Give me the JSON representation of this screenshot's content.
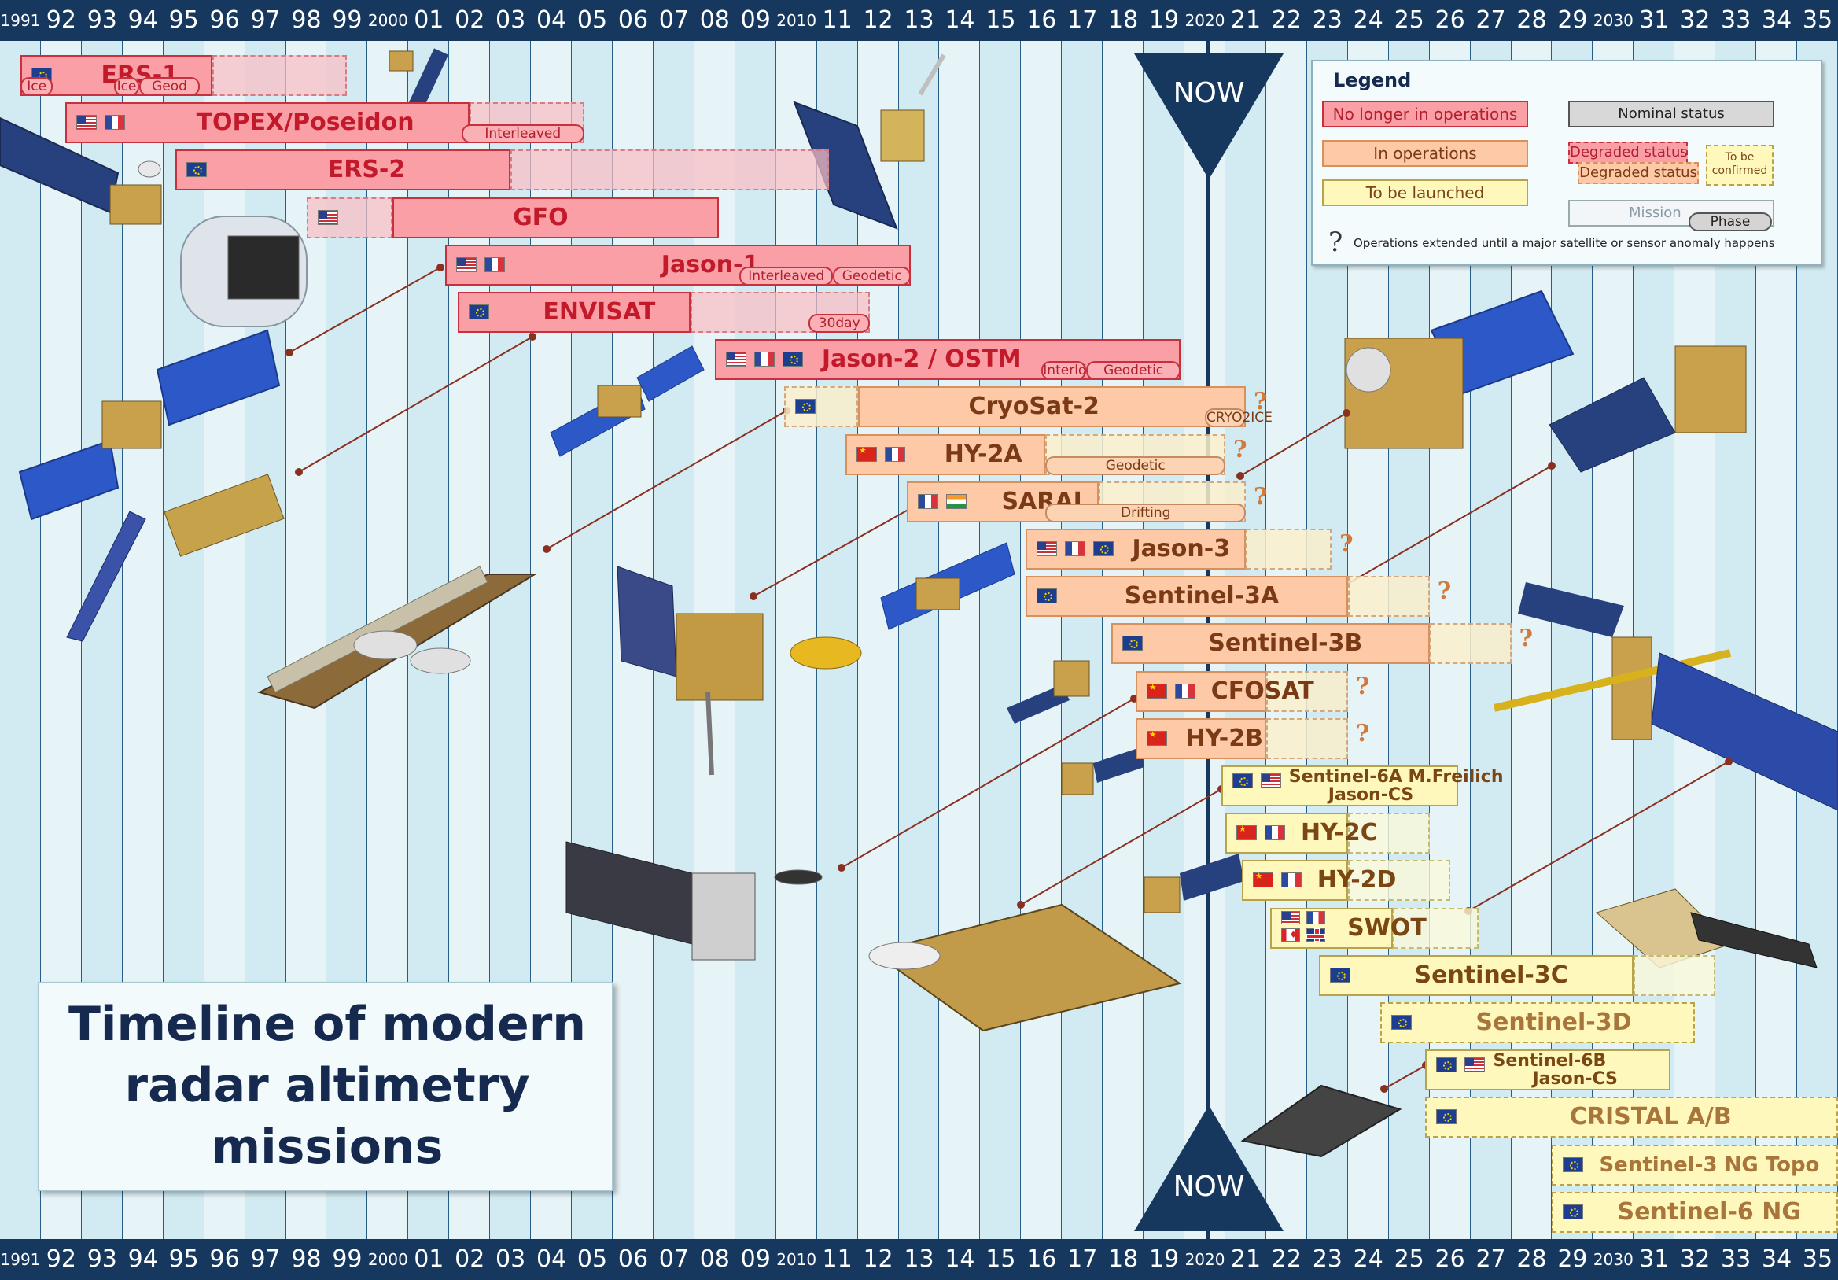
{
  "diagram": {
    "title_lines": [
      "Timeline of modern",
      "radar altimetry",
      "missions"
    ],
    "now_label": "NOW",
    "timeline_start_year": 1991,
    "timeline_end_year": 2036,
    "now_year": 2020.5,
    "year_ticks": [
      "1991",
      "92",
      "93",
      "94",
      "95",
      "96",
      "97",
      "98",
      "99",
      "2000",
      "01",
      "02",
      "03",
      "04",
      "05",
      "06",
      "07",
      "08",
      "09",
      "2010",
      "11",
      "12",
      "13",
      "14",
      "15",
      "16",
      "17",
      "18",
      "19",
      "2020",
      "21",
      "22",
      "23",
      "24",
      "25",
      "26",
      "27",
      "28",
      "29",
      "2030",
      "31",
      "32",
      "33",
      "34",
      "35"
    ],
    "colors": {
      "no_longer": "#fb9fa7",
      "in_operations": "#fdc9a7",
      "to_be_launched": "#fff8bd",
      "axis": "#17385e"
    },
    "missions": [
      {
        "name": "ERS-1",
        "status": "no_longer",
        "start": 1991.5,
        "end": 1996.2,
        "ext_end": 1999.5,
        "flags": [
          "eu"
        ],
        "phases": [
          {
            "label": "Ice",
            "start": 1991.5,
            "end": 1992.3
          },
          {
            "label": "Ice",
            "start": 1993.8,
            "end": 1994.4
          },
          {
            "label": "Geod",
            "start": 1994.4,
            "end": 1995.9
          }
        ]
      },
      {
        "name": "TOPEX/Poseidon",
        "status": "no_longer",
        "start": 1992.6,
        "end": 2002.5,
        "ext_end": 2005.3,
        "flags": [
          "us",
          "fr"
        ],
        "phases": [
          {
            "label": "Interleaved",
            "start": 2002.3,
            "end": 2005.3
          }
        ]
      },
      {
        "name": "ERS-2",
        "status": "no_longer",
        "start": 1995.3,
        "end": 2003.5,
        "ext_end": 2011.3,
        "flags": [
          "eu"
        ],
        "phases": []
      },
      {
        "name": "GFO",
        "status": "no_longer",
        "start": 1998.5,
        "end": 2008.6,
        "ext_end": 2008.6,
        "solid_start": 2000.6,
        "flags": [
          "us"
        ],
        "phases": []
      },
      {
        "name": "Jason-1",
        "status": "no_longer",
        "start": 2001.9,
        "end": 2013.3,
        "ext_end": 2013.3,
        "flags": [
          "us",
          "fr"
        ],
        "phases": [
          {
            "label": "Interleaved",
            "start": 2009.1,
            "end": 2011.4
          },
          {
            "label": "Geodetic",
            "start": 2011.4,
            "end": 2013.3
          }
        ]
      },
      {
        "name": "ENVISAT",
        "status": "no_longer",
        "start": 2002.2,
        "end": 2007.9,
        "ext_end": 2012.3,
        "flags": [
          "eu"
        ],
        "phases": [
          {
            "label": "30day",
            "start": 2010.8,
            "end": 2012.3
          }
        ]
      },
      {
        "name": "Jason-2 / OSTM",
        "status": "no_longer",
        "start": 2008.5,
        "end": 2019.9,
        "ext_end": 2019.9,
        "flags": [
          "us",
          "fr",
          "eu"
        ],
        "phases": [
          {
            "label": "Interld",
            "start": 2016.5,
            "end": 2017.6
          },
          {
            "label": "Geodetic",
            "start": 2017.6,
            "end": 2019.9
          }
        ]
      },
      {
        "name": "CryoSat-2",
        "status": "in_operations",
        "start": 2010.2,
        "end": 2021.5,
        "ext_end": 2021.5,
        "solid_start": 2012.0,
        "flags": [
          "eu"
        ],
        "phases": [
          {
            "label": "CRYO2ICE",
            "start": 2020.5,
            "end": 2021.5
          }
        ],
        "question": true
      },
      {
        "name": "HY-2A",
        "status": "in_operations",
        "start": 2011.7,
        "end": 2016.6,
        "ext_end": 2021.0,
        "flags": [
          "cn",
          "fr"
        ],
        "phases": [
          {
            "label": "Geodetic",
            "start": 2016.6,
            "end": 2021.0
          }
        ],
        "question": true
      },
      {
        "name": "SARAL",
        "status": "in_operations",
        "start": 2013.2,
        "end": 2017.9,
        "ext_end": 2021.5,
        "flags": [
          "fr",
          "in"
        ],
        "phases": [
          {
            "label": "Drifting",
            "start": 2016.6,
            "end": 2021.5
          }
        ],
        "question": true
      },
      {
        "name": "Jason-3",
        "status": "in_operations",
        "start": 2016.1,
        "end": 2021.5,
        "ext_end": 2023.6,
        "flags": [
          "us",
          "fr",
          "eu"
        ],
        "phases": [],
        "question": true
      },
      {
        "name": "Sentinel-3A",
        "status": "in_operations",
        "start": 2016.1,
        "end": 2024.0,
        "ext_end": 2026.0,
        "flags": [
          "eu"
        ],
        "phases": [],
        "question": true
      },
      {
        "name": "Sentinel-3B",
        "status": "in_operations",
        "start": 2018.2,
        "end": 2026.0,
        "ext_end": 2028.0,
        "flags": [
          "eu"
        ],
        "phases": [],
        "question": true
      },
      {
        "name": "CFOSAT",
        "status": "in_operations",
        "start": 2018.8,
        "end": 2022.0,
        "ext_end": 2024.0,
        "flags": [
          "cn",
          "fr"
        ],
        "phases": [],
        "question": true
      },
      {
        "name": "HY-2B",
        "status": "in_operations",
        "start": 2018.8,
        "end": 2022.0,
        "ext_end": 2024.0,
        "flags": [
          "cn"
        ],
        "phases": [],
        "question": true
      },
      {
        "name": "Sentinel-6A M.Freilich",
        "name2": "Jason-CS",
        "status": "to_be_launched",
        "start": 2020.9,
        "end": 2026.7,
        "ext_end": 2026.7,
        "flags": [
          "eu",
          "us"
        ],
        "phases": []
      },
      {
        "name": "HY-2C",
        "status": "to_be_launched",
        "start": 2021.0,
        "end": 2024.0,
        "ext_end": 2026.0,
        "flags": [
          "cn",
          "fr"
        ],
        "phases": []
      },
      {
        "name": "HY-2D",
        "status": "to_be_launched",
        "start": 2021.4,
        "end": 2024.0,
        "ext_end": 2026.5,
        "flags": [
          "cn",
          "fr"
        ],
        "phases": []
      },
      {
        "name": "SWOT",
        "status": "to_be_launched",
        "start": 2022.1,
        "end": 2025.1,
        "ext_end": 2027.2,
        "flags": [
          "us",
          "fr",
          "ca",
          "gb"
        ],
        "phases": []
      },
      {
        "name": "Sentinel-3C",
        "status": "to_be_launched",
        "start": 2023.3,
        "end": 2031.0,
        "ext_end": 2033.0,
        "flags": [
          "eu"
        ],
        "phases": []
      },
      {
        "name": "Sentinel-3D",
        "status": "to_be_launched",
        "start": 2024.8,
        "end": 2032.5,
        "ext_end": 2032.5,
        "dashed": true,
        "flags": [
          "eu"
        ],
        "phases": []
      },
      {
        "name": "Sentinel-6B",
        "name2": "Jason-CS",
        "status": "to_be_launched",
        "start": 2025.9,
        "end": 2031.9,
        "ext_end": 2031.9,
        "flags": [
          "eu",
          "us"
        ],
        "phases": []
      },
      {
        "name": "CRISTAL A/B",
        "status": "to_be_launched",
        "start": 2025.9,
        "end": 2036.0,
        "ext_end": 2036.0,
        "dashed": true,
        "flags": [
          "eu"
        ],
        "phases": []
      },
      {
        "name": "Sentinel-3 NG Topo",
        "status": "to_be_launched",
        "start": 2029.0,
        "end": 2036.0,
        "ext_end": 2036.0,
        "dashed": true,
        "flags": [
          "eu"
        ],
        "phases": []
      },
      {
        "name": "Sentinel-6 NG",
        "status": "to_be_launched",
        "start": 2029.0,
        "end": 2036.0,
        "ext_end": 2036.0,
        "dashed": true,
        "flags": [
          "eu"
        ],
        "phases": []
      }
    ]
  },
  "legend": {
    "heading": "Legend",
    "no_longer": "No longer in operations",
    "in_operations": "In operations",
    "to_be_launched": "To be launched",
    "nominal": "Nominal status",
    "degraded": "Degraded status",
    "degraded2": "Degraded status",
    "to_be_confirmed": "To be confirmed",
    "mission": "Mission",
    "phase": "Phase",
    "question_mark": "?",
    "extended_note": "Operations extended until a major satellite or sensor anomaly happens"
  }
}
